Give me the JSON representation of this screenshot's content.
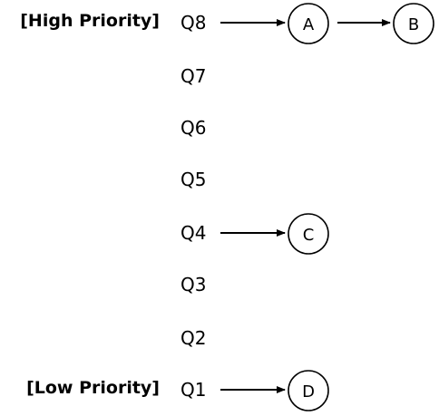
{
  "priority_labels": {
    "high": "[High Priority]",
    "low": "[Low Priority]"
  },
  "queues": [
    {
      "label": "Q8",
      "nodes": [
        "A",
        "B"
      ]
    },
    {
      "label": "Q7",
      "nodes": []
    },
    {
      "label": "Q6",
      "nodes": []
    },
    {
      "label": "Q5",
      "nodes": []
    },
    {
      "label": "Q4",
      "nodes": [
        "C"
      ]
    },
    {
      "label": "Q3",
      "nodes": []
    },
    {
      "label": "Q2",
      "nodes": []
    },
    {
      "label": "Q1",
      "nodes": [
        "D"
      ]
    }
  ],
  "colors": {
    "ink": "#000000",
    "background": "#ffffff"
  }
}
